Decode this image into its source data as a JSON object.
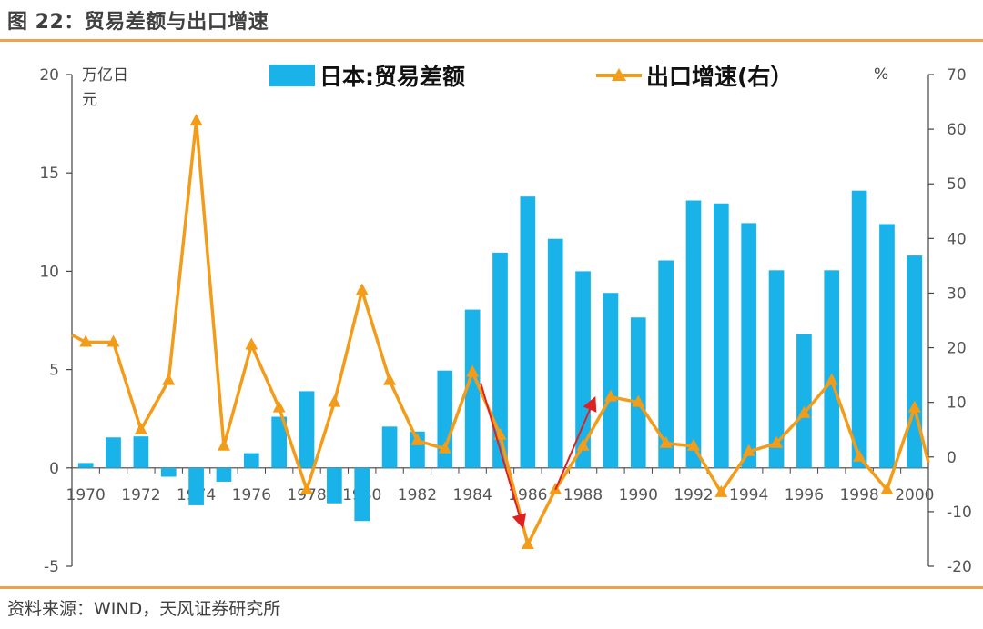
{
  "header": {
    "title": "图 22：贸易差额与出口增速"
  },
  "footer": {
    "source": "资料来源：WIND，天风证券研究所"
  },
  "colors": {
    "bar": "#19b3ea",
    "line": "#f39c1a",
    "arrow": "#e02020",
    "rule": "#f0a24a",
    "axis": "#444444"
  },
  "chart_data": {
    "type": "bar",
    "title": "",
    "ylabel_left": "万亿日元",
    "ylabel_right": "%",
    "ylim_left": [
      -5,
      20
    ],
    "ylim_right": [
      -20,
      70
    ],
    "yticks_left": [
      -5,
      0,
      5,
      10,
      15,
      20
    ],
    "yticks_right": [
      -20,
      -10,
      0,
      10,
      20,
      30,
      40,
      50,
      60,
      70
    ],
    "xtick_labels": [
      "1970",
      "1972",
      "1974",
      "1976",
      "1978",
      "1980",
      "1982",
      "1984",
      "1986",
      "1988",
      "1990",
      "1992",
      "1994",
      "1996",
      "1998",
      "2000"
    ],
    "categories": [
      1970,
      1971,
      1972,
      1973,
      1974,
      1975,
      1976,
      1977,
      1978,
      1979,
      1980,
      1981,
      1982,
      1983,
      1984,
      1985,
      1986,
      1987,
      1988,
      1989,
      1990,
      1991,
      1992,
      1993,
      1994,
      1995,
      1996,
      1997,
      1998,
      1999,
      2000
    ],
    "legend_position": "top",
    "series": [
      {
        "name": "日本:贸易差额",
        "type": "bar",
        "axis": "left",
        "values": [
          0.25,
          1.55,
          1.6,
          -0.45,
          -1.9,
          -0.7,
          0.75,
          2.6,
          3.9,
          -1.8,
          -2.7,
          2.1,
          1.85,
          4.95,
          8.05,
          10.95,
          13.8,
          11.65,
          10.0,
          8.9,
          7.65,
          10.55,
          13.6,
          13.45,
          12.45,
          10.05,
          6.8,
          10.05,
          14.1,
          12.4,
          10.8
        ]
      },
      {
        "name": "出口增速(右）",
        "type": "line",
        "axis": "right",
        "values": [
          21,
          21,
          5,
          14,
          61.5,
          2,
          20.5,
          9,
          -6,
          10,
          30.5,
          14,
          3,
          1.5,
          15.5,
          4,
          -16,
          -6,
          2,
          11,
          10,
          2.5,
          2,
          -6.5,
          1,
          2.5,
          8,
          14,
          0,
          -6,
          9
        ]
      }
    ],
    "annotations": [
      {
        "type": "arrow",
        "from": [
          1984.3,
          13.5
        ],
        "to": [
          1985.8,
          -12.5
        ]
      },
      {
        "type": "arrow",
        "from": [
          1987.0,
          -6.0
        ],
        "to": [
          1988.4,
          10.5
        ]
      }
    ]
  }
}
